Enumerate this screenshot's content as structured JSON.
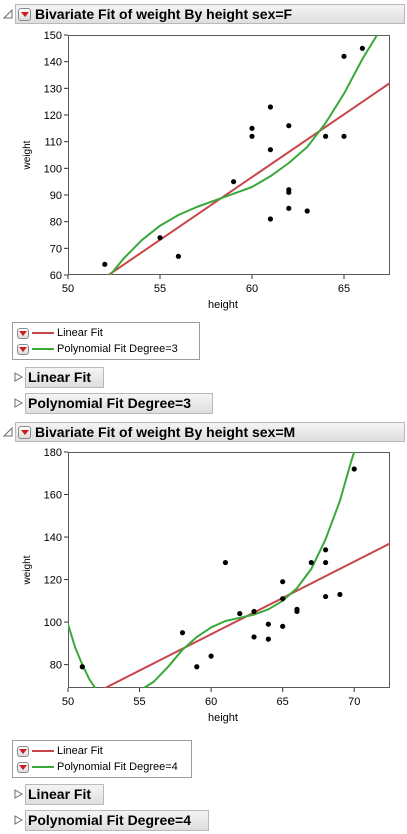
{
  "reports": [
    {
      "title": "Bivariate Fit of weight By height sex=F",
      "legend": [
        {
          "label": "Linear Fit",
          "color": "#c8464b"
        },
        {
          "label": "Polynomial Fit Degree=3",
          "color": "#3aa83a"
        }
      ],
      "subreports": [
        "Linear Fit",
        "Polynomial Fit Degree=3"
      ]
    },
    {
      "title": "Bivariate Fit of weight By height sex=M",
      "legend": [
        {
          "label": "Linear Fit",
          "color": "#c8464b"
        },
        {
          "label": "Polynomial Fit Degree=4",
          "color": "#3aa83a"
        }
      ],
      "subreports": [
        "Linear Fit",
        "Polynomial Fit Degree=4"
      ]
    }
  ],
  "chart_data": [
    {
      "type": "scatter",
      "xlabel": "height",
      "ylabel": "weight",
      "xlim": [
        50,
        67.5
      ],
      "ylim": [
        60,
        150
      ],
      "xticks": [
        50,
        55,
        60,
        65
      ],
      "yticks": [
        60,
        70,
        80,
        90,
        100,
        110,
        120,
        130,
        140,
        150
      ],
      "points": [
        [
          52,
          64
        ],
        [
          55,
          74
        ],
        [
          56,
          67
        ],
        [
          59,
          95
        ],
        [
          60,
          115
        ],
        [
          60,
          112
        ],
        [
          61,
          123
        ],
        [
          61,
          107
        ],
        [
          61,
          81
        ],
        [
          62,
          116
        ],
        [
          62,
          92
        ],
        [
          62,
          91
        ],
        [
          62,
          85
        ],
        [
          63,
          84
        ],
        [
          64,
          112
        ],
        [
          65,
          142
        ],
        [
          65,
          112
        ],
        [
          66,
          145
        ]
      ],
      "fits": [
        {
          "name": "Linear Fit",
          "color": "#c8464b",
          "kind": "linear",
          "points": [
            [
              52.2,
              60
            ],
            [
              67.5,
              132
            ]
          ]
        },
        {
          "name": "Polynomial Fit Degree=3",
          "color": "#3aa83a",
          "kind": "poly",
          "degree": 3,
          "points": [
            [
              52.3,
              60
            ],
            [
              53,
              66
            ],
            [
              54,
              73
            ],
            [
              55,
              78.5
            ],
            [
              56,
              82.5
            ],
            [
              57,
              85.5
            ],
            [
              58,
              88
            ],
            [
              59,
              90.5
            ],
            [
              60,
              93
            ],
            [
              61,
              97
            ],
            [
              62,
              102
            ],
            [
              63,
              108
            ],
            [
              64,
              117
            ],
            [
              65,
              128
            ],
            [
              66,
              141
            ],
            [
              66.8,
              150
            ]
          ]
        }
      ]
    },
    {
      "type": "scatter",
      "xlabel": "height",
      "ylabel": "weight",
      "xlim": [
        50,
        72.5
      ],
      "ylim": [
        69,
        180
      ],
      "xticks": [
        50,
        55,
        60,
        65,
        70
      ],
      "yticks": [
        80,
        100,
        120,
        140,
        160,
        180
      ],
      "points": [
        [
          51,
          79
        ],
        [
          58,
          95
        ],
        [
          59,
          79
        ],
        [
          60,
          84
        ],
        [
          61,
          128
        ],
        [
          62,
          104
        ],
        [
          63,
          105
        ],
        [
          63,
          93
        ],
        [
          64,
          99
        ],
        [
          64,
          92
        ],
        [
          65,
          119
        ],
        [
          65,
          111
        ],
        [
          65,
          98
        ],
        [
          66,
          106
        ],
        [
          66,
          105
        ],
        [
          67,
          128
        ],
        [
          68,
          134
        ],
        [
          68,
          128
        ],
        [
          68,
          112
        ],
        [
          69,
          113
        ],
        [
          70,
          172
        ]
      ],
      "fits": [
        {
          "name": "Linear Fit",
          "color": "#c8464b",
          "kind": "linear",
          "points": [
            [
              52.6,
              69
            ],
            [
              72.5,
              137
            ]
          ]
        },
        {
          "name": "Polynomial Fit Degree=4",
          "color": "#3aa83a",
          "kind": "poly",
          "degree": 4,
          "points": [
            [
              50,
              99
            ],
            [
              50.5,
              88
            ],
            [
              51,
              80
            ],
            [
              51.5,
              73
            ],
            [
              51.9,
              69
            ]
          ],
          "points2": [
            [
              55.3,
              69
            ],
            [
              56,
              72
            ],
            [
              57,
              79
            ],
            [
              58,
              87
            ],
            [
              59,
              93
            ],
            [
              60,
              97.5
            ],
            [
              61,
              100.5
            ],
            [
              62,
              102
            ],
            [
              63,
              103.5
            ],
            [
              64,
              106
            ],
            [
              65,
              110
            ],
            [
              66,
              116
            ],
            [
              67,
              125
            ],
            [
              68,
              139
            ],
            [
              69,
              157
            ],
            [
              69.8,
              176
            ],
            [
              70,
              180
            ]
          ]
        }
      ]
    }
  ]
}
